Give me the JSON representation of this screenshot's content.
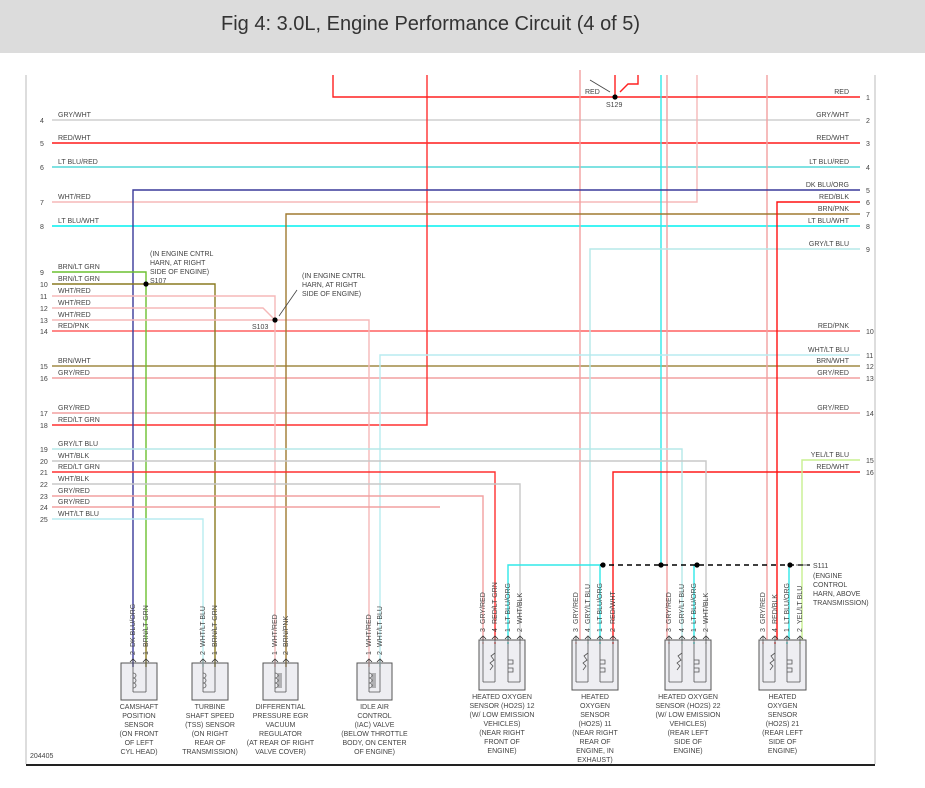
{
  "title": "Fig 4: 3.0L, Engine Performance Circuit (4 of 5)",
  "figure_id": "204405",
  "wire_colors": {
    "RED": "#ff2020",
    "GRY/WHT": "#cfcfcf",
    "RED/WHT": "#ff1a1a",
    "LT BLU/RED": "#55d8d8",
    "WHT/RED": "#f5b8b8",
    "LT BLU/WHT": "#00f0f0",
    "DK BLU/ORG": "#3a3a9a",
    "BRN/LT GRN": "#8a7a20",
    "LT GRN": "#6cc030",
    "RED/PNK": "#ff6060",
    "BRN/WHT": "#a08a45",
    "GRY/RED": "#f2a0a0",
    "RED/LT GRN": "#ff3030",
    "GRY/LT BLU": "#b5e8e8",
    "WHT/BLK": "#c8c8c8",
    "WHT/LT BLU": "#b8ecf0",
    "RED/BLK": "#ff1010",
    "YEL/LT BLU": "#c8f090",
    "BRN/PNK": "#a07a30",
    "LT BLU/ORG": "#30e8e8"
  },
  "left_pins": [
    {
      "pin": "4",
      "label": "GRY/WHT"
    },
    {
      "pin": "5",
      "label": "RED/WHT"
    },
    {
      "pin": "6",
      "label": "LT BLU/RED"
    },
    {
      "pin": "7",
      "label": "WHT/RED"
    },
    {
      "pin": "8",
      "label": "LT BLU/WHT"
    },
    {
      "pin": "9",
      "label": "BRN/LT GRN"
    },
    {
      "pin": "10",
      "label": "BRN/LT GRN"
    },
    {
      "pin": "11",
      "label": "WHT/RED"
    },
    {
      "pin": "12",
      "label": "WHT/RED"
    },
    {
      "pin": "13",
      "label": "WHT/RED"
    },
    {
      "pin": "14",
      "label": "RED/PNK"
    },
    {
      "pin": "15",
      "label": "BRN/WHT"
    },
    {
      "pin": "16",
      "label": "GRY/RED"
    },
    {
      "pin": "17",
      "label": "GRY/RED"
    },
    {
      "pin": "18",
      "label": "RED/LT GRN"
    },
    {
      "pin": "19",
      "label": "GRY/LT BLU"
    },
    {
      "pin": "20",
      "label": "WHT/BLK"
    },
    {
      "pin": "21",
      "label": "RED/LT GRN"
    },
    {
      "pin": "22",
      "label": "WHT/BLK"
    },
    {
      "pin": "23",
      "label": "GRY/RED"
    },
    {
      "pin": "24",
      "label": "GRY/RED"
    },
    {
      "pin": "25",
      "label": "WHT/LT BLU"
    }
  ],
  "right_pins": [
    {
      "pin": "1",
      "label": "RED"
    },
    {
      "pin": "2",
      "label": "GRY/WHT"
    },
    {
      "pin": "3",
      "label": "RED/WHT"
    },
    {
      "pin": "4",
      "label": "LT BLU/RED"
    },
    {
      "pin": "5",
      "label": "DK BLU/ORG"
    },
    {
      "pin": "6",
      "label": "RED/BLK"
    },
    {
      "pin": "7",
      "label": "BRN/PNK"
    },
    {
      "pin": "8",
      "label": "LT BLU/WHT"
    },
    {
      "pin": "9",
      "label": "GRY/LT BLU"
    },
    {
      "pin": "10",
      "label": "RED/PNK"
    },
    {
      "pin": "11",
      "label": "WHT/LT BLU"
    },
    {
      "pin": "12",
      "label": "BRN/WHT"
    },
    {
      "pin": "13",
      "label": "GRY/RED"
    },
    {
      "pin": "14",
      "label": "GRY/RED"
    },
    {
      "pin": "15",
      "label": "YEL/LT BLU"
    },
    {
      "pin": "16",
      "label": "RED/WHT"
    }
  ],
  "splices": {
    "s129": {
      "id": "S129",
      "wire": "RED"
    },
    "s107": {
      "id": "S107",
      "note": [
        "(IN ENGINE CNTRL",
        "HARN, AT RIGHT",
        "SIDE OF ENGINE)"
      ]
    },
    "s103": {
      "id": "S103",
      "note": [
        "(IN ENGINE CNTRL",
        "HARN, AT RIGHT",
        "SIDE OF ENGINE)"
      ]
    },
    "s111": {
      "id": "S111",
      "note": [
        "(ENGINE",
        "CONTROL",
        "HARN, ABOVE",
        "TRANSMISSION)"
      ]
    }
  },
  "components": [
    {
      "name": [
        "CAMSHAFT",
        "POSITION",
        "SENSOR",
        "(ON FRONT",
        "OF LEFT",
        "CYL HEAD)"
      ],
      "pins": [
        {
          "pin": "2",
          "label": "DK BLU/ORG"
        },
        {
          "pin": "1",
          "label": "BRN/LT GRN"
        }
      ]
    },
    {
      "name": [
        "TURBINE",
        "SHAFT SPEED",
        "(TSS) SENSOR",
        "(ON RIGHT",
        "REAR OF",
        "TRANSMISSION)"
      ],
      "pins": [
        {
          "pin": "2",
          "label": "WHT/LT BLU"
        },
        {
          "pin": "1",
          "label": "BRN/LT GRN"
        }
      ]
    },
    {
      "name": [
        "DIFFERENTIAL",
        "PRESSURE EGR",
        "VACUUM",
        "REGULATOR",
        "(AT REAR OF RIGHT",
        "VALVE COVER)"
      ],
      "pins": [
        {
          "pin": "1",
          "label": "WHT/RED"
        },
        {
          "pin": "2",
          "label": "BRN/PNK"
        }
      ]
    },
    {
      "name": [
        "IDLE AIR",
        "CONTROL",
        "(IAC) VALVE",
        "(BELOW THROTTLE",
        "BODY, ON CENTER",
        "OF ENGINE)"
      ],
      "pins": [
        {
          "pin": "1",
          "label": "WHT/RED"
        },
        {
          "pin": "2",
          "label": "WHT/LT BLU"
        }
      ]
    },
    {
      "name": [
        "HEATED OXYGEN",
        "SENSOR (HO2S) 12",
        "(W/ LOW EMISSION",
        "VEHICLES)",
        "(NEAR RIGHT",
        "FRONT OF",
        "ENGINE)"
      ],
      "pins": [
        {
          "pin": "3",
          "label": "GRY/RED"
        },
        {
          "pin": "4",
          "label": "RED/LT GRN"
        },
        {
          "pin": "1",
          "label": "LT BLU/ORG"
        },
        {
          "pin": "2",
          "label": "WHT/BLK"
        }
      ]
    },
    {
      "name": [
        "HEATED",
        "OXYGEN",
        "SENSOR",
        "(HO2S) 11",
        "(NEAR RIGHT",
        "REAR OF",
        "ENGINE, IN",
        "EXHAUST)"
      ],
      "pins": [
        {
          "pin": "3",
          "label": "GRY/RED"
        },
        {
          "pin": "4",
          "label": "GRY/LT BLU"
        },
        {
          "pin": "1",
          "label": "LT BLU/ORG"
        },
        {
          "pin": "2",
          "label": "RED/WHT"
        }
      ]
    },
    {
      "name": [
        "HEATED OXYGEN",
        "SENSOR (HO2S) 22",
        "(W/ LOW EMISSION",
        "VEHICLES)",
        "(REAR LEFT",
        "SIDE OF",
        "ENGINE)"
      ],
      "pins": [
        {
          "pin": "3",
          "label": "GRY/RED"
        },
        {
          "pin": "4",
          "label": "GRY/LT BLU"
        },
        {
          "pin": "1",
          "label": "LT BLU/ORG"
        },
        {
          "pin": "2",
          "label": "WHT/BLK"
        }
      ]
    },
    {
      "name": [
        "HEATED",
        "OXYGEN",
        "SENSOR",
        "(HO2S) 21",
        "(REAR LEFT",
        "SIDE OF",
        "ENGINE)"
      ],
      "pins": [
        {
          "pin": "3",
          "label": "GRY/RED"
        },
        {
          "pin": "4",
          "label": "RED/BLK"
        },
        {
          "pin": "1",
          "label": "LT BLU/ORG"
        },
        {
          "pin": "2",
          "label": "YEL/LT BLU"
        }
      ]
    }
  ]
}
